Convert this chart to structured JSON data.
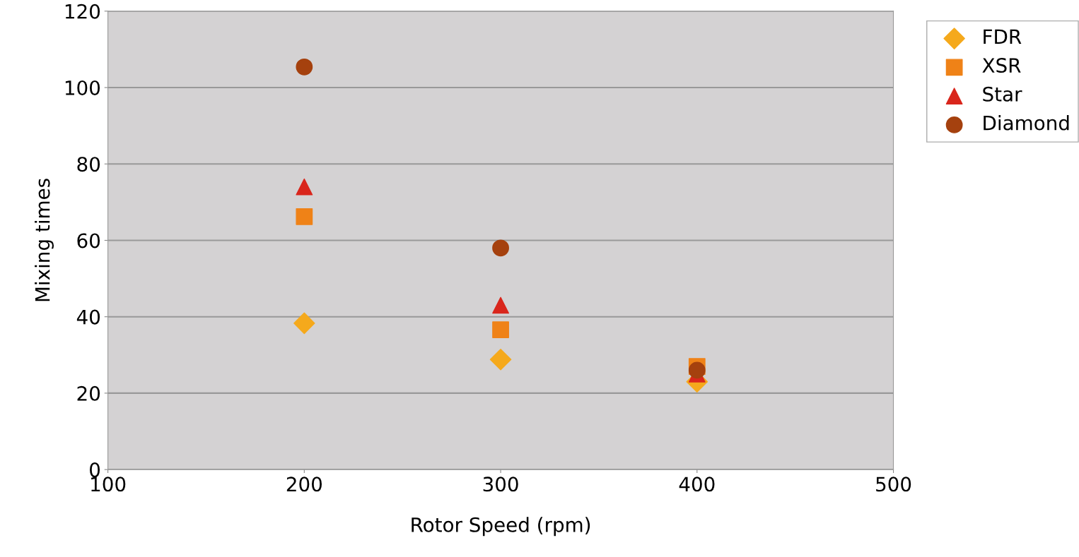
{
  "chart_data": {
    "type": "scatter",
    "xlabel": "Rotor Speed (rpm)",
    "ylabel": "Mixing times",
    "xlim": [
      100,
      500
    ],
    "xticks": [
      100,
      200,
      300,
      400,
      500
    ],
    "ylim": [
      0,
      120
    ],
    "yticks": [
      0,
      20,
      40,
      60,
      80,
      100,
      120
    ],
    "grid": "y",
    "legend": "top right",
    "series": [
      {
        "name": "FDR",
        "color": "#f5a91c",
        "marker": "diamond",
        "x": [
          200,
          300,
          400
        ],
        "values": [
          38.3,
          28.8,
          23
        ]
      },
      {
        "name": "XSR",
        "color": "#ef8217",
        "marker": "square",
        "x": [
          200,
          300,
          400
        ],
        "values": [
          66.2,
          36.6,
          27
        ]
      },
      {
        "name": "Star",
        "color": "#d9261c",
        "marker": "triangle",
        "x": [
          200,
          300,
          400
        ],
        "values": [
          74,
          43,
          25
        ]
      },
      {
        "name": "Diamond",
        "color": "#a5410e",
        "marker": "circle",
        "x": [
          200,
          300,
          400
        ],
        "values": [
          105.4,
          58,
          26
        ]
      }
    ]
  }
}
